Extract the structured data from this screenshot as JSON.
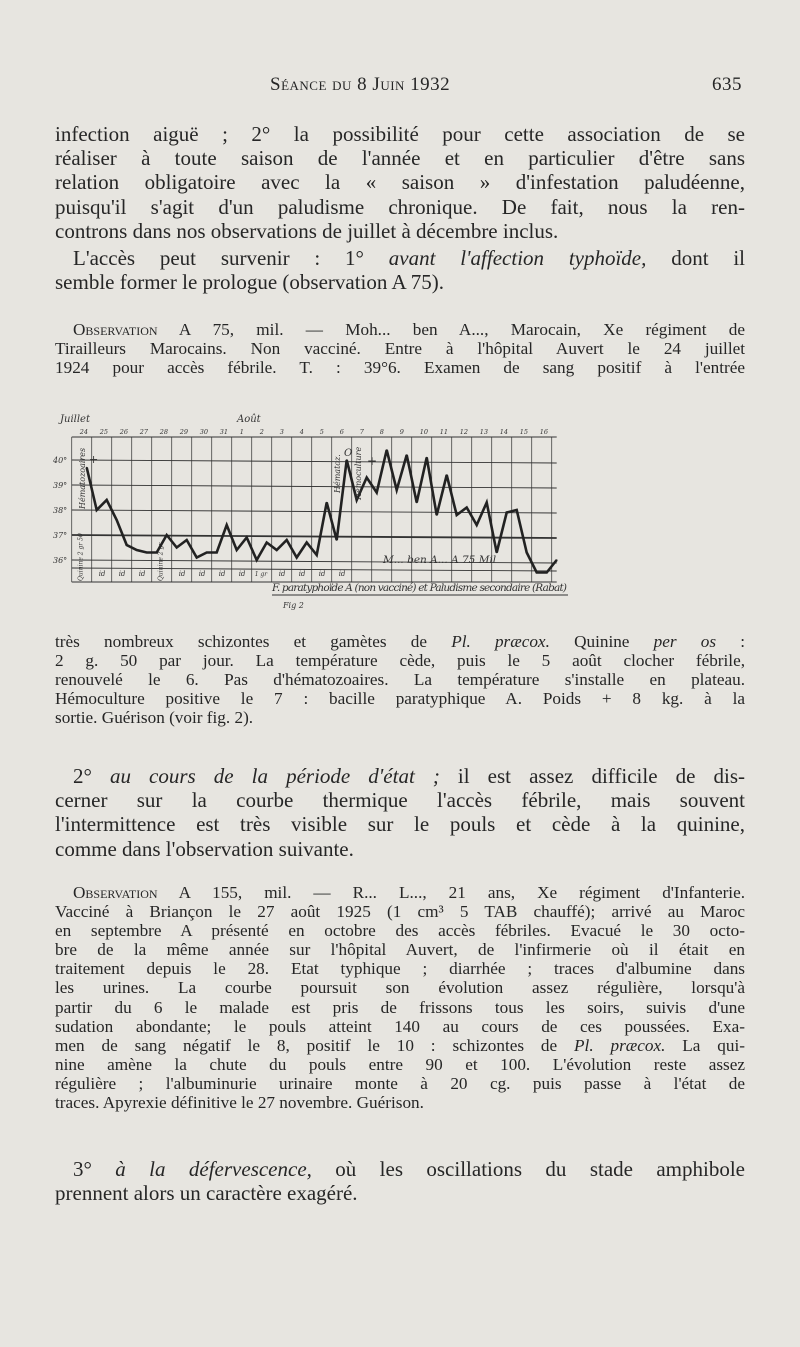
{
  "header": {
    "title": "Séance du 8 Juin 1932",
    "page_number": "635"
  },
  "para1": [
    "infection aiguë ; 2° la possibilité pour cette association de se",
    "réaliser à toute saison de l'année et en particulier d'être sans",
    "relation obligatoire avec la « saison » d'infestation paludéenne,",
    "puisqu'il s'agit d'un paludisme chronique. De fait, nous la ren-",
    "controns dans nos observations de juillet à décembre inclus."
  ],
  "para2": {
    "l1_a": "L'accès peut survenir : 1° ",
    "l1_i": "avant l'affection typhoïde,",
    "l1_b": " dont il",
    "l2": "semble former le prologue (observation A 75)."
  },
  "obs75": {
    "label": "Observation",
    "l1": " A 75, mil. — Moh... ben A..., Marocain, Xe régiment de",
    "l2": "Tirailleurs Marocains. Non vacciné. Entre à l'hôpital Auvert le 24 juillet",
    "l3": "1924 pour accès fébrile. T. : 39°6. Examen de sang positif à l'entrée"
  },
  "figure": {
    "caption": "Fig 2",
    "chart_data": {
      "type": "line",
      "title": "F. paratyphoïde A (non vacciné) et Paludisme secondaire (Rabat)",
      "patient_label": "M... ben A... A 75 Mil",
      "month_labels": [
        "Juillet",
        "Août"
      ],
      "days": [
        "24",
        "25",
        "26",
        "27",
        "28",
        "29",
        "30",
        "31",
        "1",
        "2",
        "3",
        "4",
        "5",
        "6",
        "7",
        "8",
        "9",
        "10",
        "11",
        "12",
        "13",
        "14",
        "15",
        "16"
      ],
      "y_ticks": [
        "40°",
        "39°",
        "38°",
        "37°",
        "36°"
      ],
      "ylim": [
        35.3,
        40.9
      ],
      "values": [
        39.7,
        38.0,
        38.4,
        37.6,
        36.6,
        36.4,
        36.3,
        36.3,
        37.0,
        36.5,
        36.8,
        36.1,
        36.3,
        36.3,
        37.4,
        36.4,
        36.9,
        36.0,
        36.7,
        36.4,
        36.8,
        36.1,
        36.7,
        36.2,
        38.3,
        36.8,
        40.0,
        38.4,
        39.3,
        38.7,
        40.4,
        38.8,
        40.2,
        38.3,
        40.1,
        37.8,
        39.4,
        37.8,
        38.1,
        37.4,
        38.3,
        36.3,
        37.9,
        38.0,
        36.3,
        35.5,
        35.5,
        36.0
      ],
      "annotations": {
        "hemato_1": "Hématozoaires",
        "hemato_1_sign": "+",
        "hemato_2": "Hématoz.",
        "hemato_2_sign": "O",
        "hemoculture": "Hémoculture",
        "hemoculture_sign": "+"
      },
      "treatment_row": [
        "Quinine 2 gr 50",
        "id",
        "id",
        "id",
        "Quinine 2 gr",
        "id",
        "id",
        "id",
        "id",
        "1 gr",
        "id",
        "id",
        "id",
        "id"
      ]
    }
  },
  "para3": [
    {
      "a": "très nombreux schizontes et gamètes de ",
      "i": "Pl. præcox.",
      "b": " Quinine ",
      "i2": "per os",
      "c": " :"
    },
    "2 g. 50 par jour. La température cède, puis le 5 août clocher fébrile,",
    "renouvelé le 6. Pas d'hématozoaires. La température s'installe en plateau.",
    "Hémoculture positive le 7 : bacille paratyphique A. Poids + 8 kg. à la",
    "sortie. Guérison (voir fig. 2)."
  ],
  "para4": {
    "l1_a": "2° ",
    "l1_i": "au cours de la période d'état ;",
    "l1_b": " il est assez difficile de dis-",
    "lines": [
      "cerner sur la courbe thermique l'accès fébrile, mais souvent",
      "l'intermittence est très visible sur le pouls et cède à la quinine,",
      "comme dans l'observation suivante."
    ]
  },
  "obs155": {
    "label": "Observation",
    "l1": " A 155, mil. — R... L..., 21 ans, Xe régiment d'Infanterie.",
    "lines": [
      "Vacciné à Briançon le 27 août 1925 (1 cm³ 5 TAB chauffé); arrivé au Maroc",
      "en septembre A présenté en octobre des accès fébriles. Evacué le 30 octo-",
      "bre de la même année sur l'hôpital Auvert, de l'infirmerie où il était en",
      "traitement depuis le 28. Etat typhique ; diarrhée ; traces d'albumine dans",
      "les urines. La courbe poursuit son évolution assez régulière, lorsqu'à",
      "partir du 6 le malade est pris de frissons tous les soirs, suivis d'une",
      "sudation abondante; le pouls atteint 140 au cours de ces poussées. Exa-"
    ],
    "l9_a": "men de sang négatif le 8, positif le 10 : schizontes de ",
    "l9_i": "Pl. præcox.",
    "l9_b": " La qui-",
    "tail": [
      "nine amène la chute du pouls entre 90 et 100. L'évolution reste assez",
      "régulière ; l'albuminurie urinaire monte à 20 cg. puis passe à l'état de",
      "traces. Apyrexie définitive le 27 novembre. Guérison."
    ]
  },
  "para5": {
    "l1_a": "3° ",
    "l1_i": "à la défervescence,",
    "l1_b": " où les oscillations du stade amphibole",
    "l2": "prennent alors un caractère exagéré."
  }
}
